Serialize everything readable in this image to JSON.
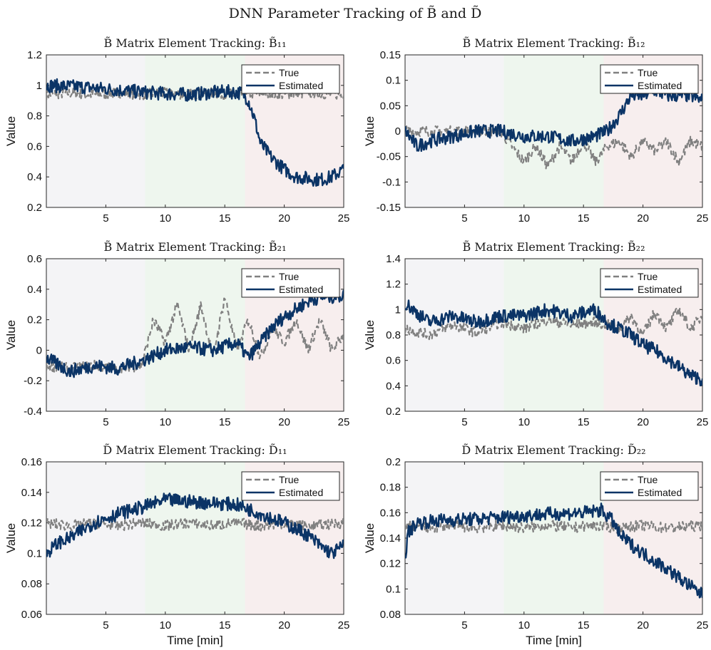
{
  "figure_title": "DNN Parameter Tracking of B̃ and D̃",
  "colors": {
    "true_line": "#808080",
    "estimated_line": "#0b3466",
    "phase1": "#f4f4f6",
    "phase2": "#eef6ee",
    "phase3": "#f7eeee",
    "axis": "#262626"
  },
  "chart_data": [
    {
      "type": "line",
      "title": "B̃ Matrix Element Tracking: B̃₁₁",
      "xlabel": "",
      "ylabel": "Value",
      "xlim": [
        0,
        25
      ],
      "ylim": [
        0.2,
        1.2
      ],
      "xticks": [
        "5",
        "10",
        "15",
        "20",
        "25"
      ],
      "yticks": [
        "0.2",
        "0.4",
        "0.6",
        "0.8",
        "1",
        "1.2"
      ],
      "phase_boundaries_min": [
        8.3,
        16.7
      ],
      "legend": [
        "True",
        "Estimated"
      ],
      "series": [
        {
          "name": "True",
          "style": "dashed",
          "x": [
            0,
            2,
            4,
            6,
            8,
            10,
            12,
            14,
            16,
            18,
            20,
            22,
            25
          ],
          "values": [
            0.94,
            0.95,
            0.94,
            0.95,
            0.94,
            0.95,
            0.94,
            0.95,
            0.94,
            0.95,
            0.94,
            0.95,
            0.94
          ]
        },
        {
          "name": "Estimated",
          "style": "solid",
          "x": [
            0,
            3,
            6,
            9,
            12,
            15,
            16.5,
            17,
            17.5,
            18,
            19,
            20,
            21,
            22,
            23,
            24,
            25
          ],
          "values": [
            1.0,
            0.99,
            0.97,
            0.95,
            0.94,
            0.96,
            0.95,
            0.9,
            0.78,
            0.62,
            0.52,
            0.45,
            0.4,
            0.39,
            0.38,
            0.4,
            0.45
          ]
        }
      ]
    },
    {
      "type": "line",
      "title": "B̃ Matrix Element Tracking: B̃₁₂",
      "xlabel": "",
      "ylabel": "Value",
      "xlim": [
        0,
        25
      ],
      "ylim": [
        -0.15,
        0.15
      ],
      "xticks": [
        "5",
        "10",
        "15",
        "20",
        "25"
      ],
      "yticks": [
        "-0.15",
        "-0.1",
        "-0.05",
        "0",
        "0.05",
        "0.1",
        "0.15"
      ],
      "phase_boundaries_min": [
        8.3,
        16.7
      ],
      "legend": [
        "True",
        "Estimated"
      ],
      "series": [
        {
          "name": "True",
          "style": "dashed",
          "x": [
            0,
            2,
            4,
            6,
            8,
            9,
            10,
            11,
            12,
            13,
            14,
            15,
            16,
            17,
            18,
            19,
            20,
            21,
            22,
            23,
            24,
            25
          ],
          "values": [
            0,
            0,
            0,
            0,
            0,
            -0.03,
            -0.06,
            -0.03,
            -0.07,
            -0.03,
            -0.06,
            -0.02,
            -0.06,
            -0.03,
            -0.02,
            -0.05,
            -0.02,
            -0.04,
            -0.02,
            -0.06,
            -0.02,
            -0.03
          ]
        },
        {
          "name": "Estimated",
          "style": "solid",
          "x": [
            0,
            1,
            2,
            4,
            6,
            8,
            10,
            12,
            14,
            16,
            17,
            18,
            19,
            20,
            21,
            22,
            23,
            24,
            25
          ],
          "values": [
            0,
            -0.03,
            -0.02,
            -0.01,
            0.0,
            0.0,
            -0.01,
            -0.01,
            -0.02,
            -0.01,
            0.0,
            0.03,
            0.07,
            0.07,
            0.08,
            0.07,
            0.07,
            0.07,
            0.06
          ]
        }
      ]
    },
    {
      "type": "line",
      "title": "B̃ Matrix Element Tracking: B̃₂₁",
      "xlabel": "",
      "ylabel": "Value",
      "xlim": [
        0,
        25
      ],
      "ylim": [
        -0.4,
        0.6
      ],
      "xticks": [
        "5",
        "10",
        "15",
        "20",
        "25"
      ],
      "yticks": [
        "-0.4",
        "-0.2",
        "0",
        "0.2",
        "0.4",
        "0.6"
      ],
      "phase_boundaries_min": [
        8.3,
        16.7
      ],
      "legend": [
        "True",
        "Estimated"
      ],
      "series": [
        {
          "name": "True",
          "style": "dashed",
          "x": [
            0,
            2,
            4,
            6,
            8,
            9,
            10,
            11,
            12,
            13,
            14,
            15,
            16,
            17,
            18,
            19,
            20,
            21,
            22,
            23,
            24,
            25
          ],
          "values": [
            -0.1,
            -0.12,
            -0.1,
            -0.12,
            -0.1,
            0.2,
            0.05,
            0.3,
            0.0,
            0.3,
            -0.05,
            0.35,
            0.0,
            0.2,
            -0.05,
            0.15,
            0.05,
            0.2,
            0.0,
            0.2,
            0.0,
            0.1
          ]
        },
        {
          "name": "Estimated",
          "style": "solid",
          "x": [
            0,
            2,
            4,
            6,
            8,
            10,
            12,
            14,
            16,
            17,
            18,
            19,
            20,
            21,
            22,
            23,
            24,
            25
          ],
          "values": [
            -0.05,
            -0.14,
            -0.1,
            -0.12,
            -0.07,
            0.0,
            0.02,
            0.0,
            0.05,
            -0.05,
            0.05,
            0.15,
            0.22,
            0.27,
            0.32,
            0.35,
            0.35,
            0.36
          ]
        }
      ]
    },
    {
      "type": "line",
      "title": "B̃ Matrix Element Tracking: B̃₂₂",
      "xlabel": "",
      "ylabel": "Value",
      "xlim": [
        0,
        25
      ],
      "ylim": [
        0.2,
        1.4
      ],
      "xticks": [
        "5",
        "10",
        "15",
        "20",
        "25"
      ],
      "yticks": [
        "0.2",
        "0.4",
        "0.6",
        "0.8",
        "1",
        "1.2",
        "1.4"
      ],
      "phase_boundaries_min": [
        8.3,
        16.7
      ],
      "legend": [
        "True",
        "Estimated"
      ],
      "series": [
        {
          "name": "True",
          "style": "dashed",
          "x": [
            0,
            2,
            4,
            6,
            8,
            10,
            12,
            14,
            16,
            17,
            18,
            19,
            20,
            21,
            22,
            23,
            24,
            25
          ],
          "values": [
            0.85,
            0.8,
            0.88,
            0.82,
            0.9,
            0.85,
            0.92,
            0.88,
            0.9,
            0.88,
            0.85,
            0.95,
            0.8,
            0.98,
            0.85,
            1.0,
            0.85,
            0.95
          ]
        },
        {
          "name": "Estimated",
          "style": "solid",
          "x": [
            0,
            2,
            4,
            6,
            8,
            10,
            12,
            14,
            16,
            17,
            18,
            19,
            20,
            21,
            22,
            23,
            24,
            25
          ],
          "values": [
            1.05,
            0.9,
            0.95,
            0.9,
            0.95,
            0.95,
            1.0,
            0.95,
            1.0,
            0.9,
            0.85,
            0.8,
            0.72,
            0.68,
            0.62,
            0.55,
            0.48,
            0.45
          ]
        }
      ]
    },
    {
      "type": "line",
      "title": "D̃ Matrix Element Tracking: D̃₁₁",
      "xlabel": "Time [min]",
      "ylabel": "Value",
      "xlim": [
        0,
        25
      ],
      "ylim": [
        0.06,
        0.16
      ],
      "xticks": [
        "5",
        "10",
        "15",
        "20",
        "25"
      ],
      "yticks": [
        "0.06",
        "0.08",
        "0.1",
        "0.12",
        "0.14",
        "0.16"
      ],
      "phase_boundaries_min": [
        8.3,
        16.7
      ],
      "legend": [
        "True",
        "Estimated"
      ],
      "series": [
        {
          "name": "True",
          "style": "dashed",
          "x": [
            0,
            2,
            4,
            6,
            8,
            10,
            12,
            14,
            16,
            18,
            20,
            22,
            25
          ],
          "values": [
            0.12,
            0.118,
            0.12,
            0.118,
            0.12,
            0.118,
            0.12,
            0.118,
            0.12,
            0.118,
            0.12,
            0.118,
            0.12
          ]
        },
        {
          "name": "Estimated",
          "style": "solid",
          "x": [
            0,
            1,
            2,
            3,
            4,
            6,
            8,
            10,
            12,
            14,
            16,
            18,
            20,
            22,
            23,
            24,
            25
          ],
          "values": [
            0.1,
            0.107,
            0.11,
            0.115,
            0.12,
            0.126,
            0.13,
            0.135,
            0.134,
            0.133,
            0.132,
            0.126,
            0.12,
            0.112,
            0.105,
            0.1,
            0.105
          ]
        }
      ]
    },
    {
      "type": "line",
      "title": "D̃ Matrix Element Tracking: D̃₂₂",
      "xlabel": "Time [min]",
      "ylabel": "Value",
      "xlim": [
        0,
        25
      ],
      "ylim": [
        0.08,
        0.2
      ],
      "xticks": [
        "5",
        "10",
        "15",
        "20",
        "25"
      ],
      "yticks": [
        "0.08",
        "0.1",
        "0.12",
        "0.14",
        "0.16",
        "0.18",
        "0.2"
      ],
      "phase_boundaries_min": [
        8.3,
        16.7
      ],
      "legend": [
        "True",
        "Estimated"
      ],
      "series": [
        {
          "name": "True",
          "style": "dashed",
          "x": [
            0,
            2,
            4,
            6,
            8,
            10,
            12,
            14,
            16,
            18,
            20,
            22,
            25
          ],
          "values": [
            0.15,
            0.148,
            0.15,
            0.148,
            0.15,
            0.148,
            0.15,
            0.148,
            0.15,
            0.148,
            0.15,
            0.148,
            0.15
          ]
        },
        {
          "name": "Estimated",
          "style": "solid",
          "x": [
            0,
            0.3,
            1,
            3,
            6,
            9,
            12,
            15,
            16.5,
            17.5,
            18,
            19,
            20,
            21,
            22,
            23,
            24,
            25
          ],
          "values": [
            0.125,
            0.145,
            0.152,
            0.154,
            0.155,
            0.157,
            0.159,
            0.16,
            0.162,
            0.153,
            0.143,
            0.135,
            0.128,
            0.122,
            0.116,
            0.109,
            0.102,
            0.095
          ]
        }
      ]
    }
  ]
}
